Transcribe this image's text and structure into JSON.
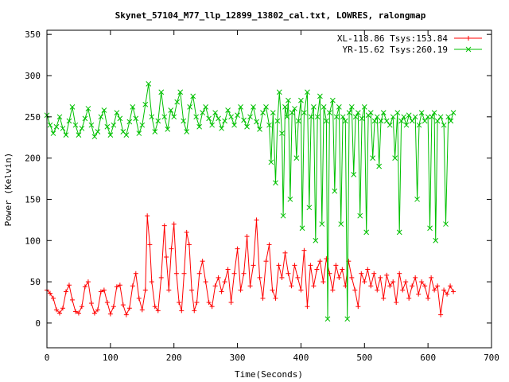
{
  "chart_data": {
    "type": "line",
    "title": "Skynet_57104_M77_llp_12899_13802_cal.txt, LOWRES, ralongmap",
    "xlabel": "Time(Seconds)",
    "ylabel": "Power (Kelvin)",
    "xlim": [
      0,
      700
    ],
    "ylim": [
      -30,
      355
    ],
    "xticks": [
      0,
      100,
      200,
      300,
      400,
      500,
      600,
      700
    ],
    "yticks": [
      0,
      50,
      100,
      150,
      200,
      250,
      300,
      350
    ],
    "grid": false,
    "legend_position": "top-right",
    "series": [
      {
        "name": "XL-118.86 Tsys:153.84",
        "color": "#ff0000",
        "marker": "plus",
        "points": [
          [
            0,
            40
          ],
          [
            5,
            36
          ],
          [
            10,
            30
          ],
          [
            15,
            16
          ],
          [
            20,
            12
          ],
          [
            25,
            18
          ],
          [
            30,
            38
          ],
          [
            35,
            46
          ],
          [
            40,
            28
          ],
          [
            45,
            14
          ],
          [
            50,
            12
          ],
          [
            55,
            20
          ],
          [
            60,
            44
          ],
          [
            65,
            50
          ],
          [
            70,
            24
          ],
          [
            75,
            12
          ],
          [
            80,
            16
          ],
          [
            85,
            38
          ],
          [
            90,
            40
          ],
          [
            95,
            25
          ],
          [
            100,
            11
          ],
          [
            105,
            20
          ],
          [
            110,
            44
          ],
          [
            115,
            46
          ],
          [
            120,
            22
          ],
          [
            125,
            10
          ],
          [
            130,
            18
          ],
          [
            135,
            45
          ],
          [
            140,
            60
          ],
          [
            145,
            30
          ],
          [
            150,
            16
          ],
          [
            155,
            40
          ],
          [
            158,
            130
          ],
          [
            162,
            95
          ],
          [
            165,
            50
          ],
          [
            170,
            20
          ],
          [
            175,
            15
          ],
          [
            180,
            55
          ],
          [
            185,
            118
          ],
          [
            188,
            80
          ],
          [
            192,
            40
          ],
          [
            196,
            90
          ],
          [
            200,
            120
          ],
          [
            204,
            60
          ],
          [
            208,
            25
          ],
          [
            212,
            15
          ],
          [
            216,
            60
          ],
          [
            220,
            110
          ],
          [
            224,
            95
          ],
          [
            228,
            40
          ],
          [
            232,
            15
          ],
          [
            236,
            25
          ],
          [
            240,
            60
          ],
          [
            245,
            75
          ],
          [
            250,
            50
          ],
          [
            255,
            25
          ],
          [
            260,
            20
          ],
          [
            265,
            45
          ],
          [
            270,
            55
          ],
          [
            275,
            38
          ],
          [
            280,
            50
          ],
          [
            285,
            65
          ],
          [
            290,
            25
          ],
          [
            295,
            60
          ],
          [
            300,
            90
          ],
          [
            305,
            40
          ],
          [
            310,
            60
          ],
          [
            315,
            105
          ],
          [
            320,
            45
          ],
          [
            325,
            70
          ],
          [
            330,
            125
          ],
          [
            335,
            55
          ],
          [
            340,
            30
          ],
          [
            345,
            75
          ],
          [
            350,
            95
          ],
          [
            355,
            40
          ],
          [
            360,
            30
          ],
          [
            365,
            70
          ],
          [
            370,
            55
          ],
          [
            375,
            85
          ],
          [
            380,
            60
          ],
          [
            385,
            45
          ],
          [
            390,
            70
          ],
          [
            395,
            55
          ],
          [
            400,
            40
          ],
          [
            405,
            88
          ],
          [
            410,
            20
          ],
          [
            415,
            70
          ],
          [
            420,
            45
          ],
          [
            425,
            65
          ],
          [
            430,
            75
          ],
          [
            435,
            50
          ],
          [
            440,
            78
          ],
          [
            445,
            60
          ],
          [
            450,
            40
          ],
          [
            455,
            70
          ],
          [
            460,
            55
          ],
          [
            465,
            65
          ],
          [
            470,
            45
          ],
          [
            475,
            75
          ],
          [
            480,
            55
          ],
          [
            485,
            40
          ],
          [
            490,
            20
          ],
          [
            495,
            60
          ],
          [
            500,
            50
          ],
          [
            505,
            65
          ],
          [
            510,
            45
          ],
          [
            515,
            60
          ],
          [
            520,
            40
          ],
          [
            525,
            55
          ],
          [
            530,
            30
          ],
          [
            535,
            58
          ],
          [
            540,
            45
          ],
          [
            545,
            50
          ],
          [
            550,
            25
          ],
          [
            555,
            60
          ],
          [
            560,
            40
          ],
          [
            565,
            50
          ],
          [
            570,
            30
          ],
          [
            575,
            45
          ],
          [
            580,
            55
          ],
          [
            585,
            35
          ],
          [
            590,
            50
          ],
          [
            595,
            45
          ],
          [
            600,
            30
          ],
          [
            605,
            55
          ],
          [
            610,
            40
          ],
          [
            615,
            45
          ],
          [
            620,
            10
          ],
          [
            625,
            40
          ],
          [
            630,
            35
          ],
          [
            635,
            45
          ],
          [
            640,
            38
          ]
        ]
      },
      {
        "name": "YR-15.62 Tsys:260.19",
        "color": "#00c000",
        "marker": "cross",
        "points": [
          [
            0,
            252
          ],
          [
            5,
            240
          ],
          [
            10,
            230
          ],
          [
            15,
            238
          ],
          [
            20,
            250
          ],
          [
            25,
            236
          ],
          [
            30,
            228
          ],
          [
            35,
            245
          ],
          [
            40,
            262
          ],
          [
            45,
            240
          ],
          [
            50,
            228
          ],
          [
            55,
            236
          ],
          [
            60,
            248
          ],
          [
            65,
            260
          ],
          [
            70,
            240
          ],
          [
            75,
            226
          ],
          [
            80,
            232
          ],
          [
            85,
            250
          ],
          [
            90,
            258
          ],
          [
            95,
            238
          ],
          [
            100,
            228
          ],
          [
            105,
            240
          ],
          [
            110,
            255
          ],
          [
            115,
            248
          ],
          [
            120,
            232
          ],
          [
            125,
            228
          ],
          [
            130,
            244
          ],
          [
            135,
            262
          ],
          [
            140,
            248
          ],
          [
            145,
            230
          ],
          [
            150,
            240
          ],
          [
            155,
            265
          ],
          [
            160,
            290
          ],
          [
            165,
            250
          ],
          [
            170,
            232
          ],
          [
            175,
            245
          ],
          [
            180,
            280
          ],
          [
            185,
            250
          ],
          [
            190,
            235
          ],
          [
            195,
            258
          ],
          [
            200,
            250
          ],
          [
            205,
            268
          ],
          [
            210,
            280
          ],
          [
            215,
            245
          ],
          [
            220,
            232
          ],
          [
            225,
            262
          ],
          [
            230,
            275
          ],
          [
            235,
            250
          ],
          [
            240,
            238
          ],
          [
            245,
            255
          ],
          [
            250,
            262
          ],
          [
            255,
            248
          ],
          [
            260,
            240
          ],
          [
            265,
            255
          ],
          [
            270,
            248
          ],
          [
            275,
            236
          ],
          [
            280,
            245
          ],
          [
            285,
            258
          ],
          [
            290,
            250
          ],
          [
            295,
            240
          ],
          [
            300,
            252
          ],
          [
            305,
            262
          ],
          [
            310,
            246
          ],
          [
            315,
            238
          ],
          [
            320,
            250
          ],
          [
            325,
            262
          ],
          [
            330,
            244
          ],
          [
            335,
            235
          ],
          [
            340,
            255
          ],
          [
            345,
            262
          ],
          [
            350,
            240
          ],
          [
            353,
            195
          ],
          [
            356,
            255
          ],
          [
            360,
            170
          ],
          [
            363,
            245
          ],
          [
            366,
            280
          ],
          [
            370,
            230
          ],
          [
            372,
            130
          ],
          [
            375,
            262
          ],
          [
            378,
            250
          ],
          [
            380,
            270
          ],
          [
            383,
            150
          ],
          [
            386,
            255
          ],
          [
            390,
            260
          ],
          [
            393,
            200
          ],
          [
            396,
            245
          ],
          [
            400,
            270
          ],
          [
            402,
            115
          ],
          [
            405,
            255
          ],
          [
            410,
            280
          ],
          [
            413,
            140
          ],
          [
            416,
            250
          ],
          [
            420,
            262
          ],
          [
            423,
            100
          ],
          [
            426,
            250
          ],
          [
            430,
            275
          ],
          [
            433,
            120
          ],
          [
            436,
            262
          ],
          [
            440,
            245
          ],
          [
            442,
            5
          ],
          [
            445,
            255
          ],
          [
            450,
            270
          ],
          [
            453,
            160
          ],
          [
            456,
            250
          ],
          [
            460,
            262
          ],
          [
            463,
            120
          ],
          [
            466,
            250
          ],
          [
            470,
            245
          ],
          [
            473,
            5
          ],
          [
            476,
            255
          ],
          [
            480,
            262
          ],
          [
            483,
            180
          ],
          [
            486,
            250
          ],
          [
            490,
            255
          ],
          [
            493,
            130
          ],
          [
            496,
            248
          ],
          [
            500,
            262
          ],
          [
            503,
            110
          ],
          [
            506,
            252
          ],
          [
            510,
            255
          ],
          [
            513,
            200
          ],
          [
            516,
            245
          ],
          [
            520,
            250
          ],
          [
            523,
            190
          ],
          [
            526,
            245
          ],
          [
            530,
            255
          ],
          [
            535,
            245
          ],
          [
            540,
            240
          ],
          [
            545,
            250
          ],
          [
            548,
            200
          ],
          [
            552,
            255
          ],
          [
            555,
            110
          ],
          [
            558,
            245
          ],
          [
            562,
            250
          ],
          [
            566,
            240
          ],
          [
            570,
            252
          ],
          [
            575,
            245
          ],
          [
            580,
            250
          ],
          [
            583,
            150
          ],
          [
            586,
            240
          ],
          [
            590,
            255
          ],
          [
            595,
            245
          ],
          [
            600,
            250
          ],
          [
            603,
            115
          ],
          [
            606,
            250
          ],
          [
            610,
            255
          ],
          [
            612,
            100
          ],
          [
            615,
            245
          ],
          [
            620,
            250
          ],
          [
            625,
            240
          ],
          [
            628,
            120
          ],
          [
            632,
            250
          ],
          [
            636,
            245
          ],
          [
            640,
            255
          ]
        ]
      }
    ]
  }
}
